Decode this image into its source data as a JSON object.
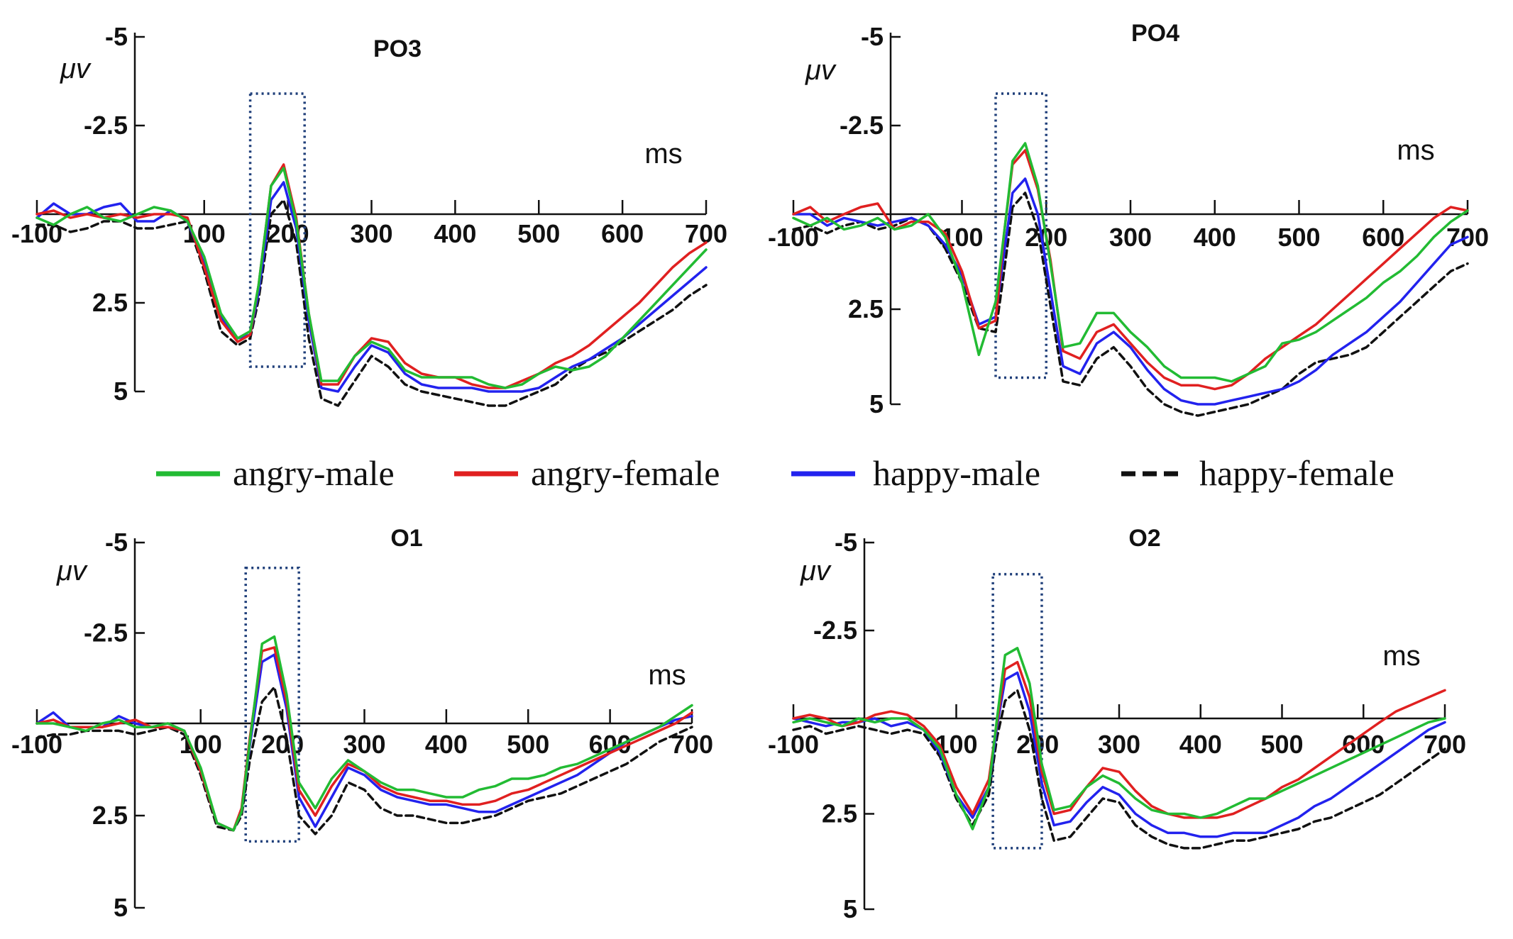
{
  "legend": [
    {
      "label": "angry-male",
      "color": "#22bb33",
      "dashed": false
    },
    {
      "label": "angry-female",
      "color": "#e02020",
      "dashed": false
    },
    {
      "label": "happy-male",
      "color": "#2222ee",
      "dashed": false
    },
    {
      "label": "happy-female",
      "color": "#111111",
      "dashed": true
    }
  ],
  "chart_data": [
    {
      "type": "line",
      "title": "PO3",
      "xlabel": "ms",
      "ylabel": "μv",
      "xlim": [
        -100,
        700
      ],
      "ylim": [
        -5,
        5
      ],
      "y_inverted": true,
      "x_ticks": [
        -100,
        100,
        200,
        300,
        400,
        500,
        600,
        700
      ],
      "y_ticks": [
        -5,
        -2.5,
        2.5,
        5
      ],
      "y_tick_labels": [
        "-5",
        "-2.5",
        "2.5",
        "5"
      ],
      "highlight_window": {
        "x": [
          155,
          220
        ],
        "y": [
          -3.4,
          4.3
        ]
      },
      "x": [
        -100,
        -80,
        -60,
        -40,
        -20,
        0,
        20,
        40,
        60,
        80,
        100,
        120,
        140,
        155,
        165,
        180,
        195,
        210,
        225,
        240,
        260,
        280,
        300,
        320,
        340,
        360,
        380,
        400,
        420,
        440,
        460,
        480,
        500,
        520,
        540,
        560,
        580,
        600,
        620,
        640,
        660,
        680,
        700
      ],
      "series": [
        {
          "name": "angry-male",
          "values": [
            0.1,
            0.3,
            0.0,
            -0.2,
            0.1,
            0.2,
            0.0,
            -0.2,
            -0.1,
            0.2,
            1.2,
            2.8,
            3.5,
            3.3,
            2.0,
            -0.8,
            -1.3,
            0.2,
            2.8,
            4.7,
            4.7,
            4.0,
            3.6,
            3.8,
            4.4,
            4.6,
            4.6,
            4.6,
            4.6,
            4.8,
            4.9,
            4.8,
            4.5,
            4.3,
            4.4,
            4.3,
            4.0,
            3.5,
            3.0,
            2.5,
            2.0,
            1.5,
            1.0
          ]
        },
        {
          "name": "angry-female",
          "values": [
            0.0,
            -0.1,
            0.1,
            0.0,
            0.1,
            0.0,
            0.1,
            0.0,
            0.0,
            0.1,
            1.5,
            3.0,
            3.6,
            3.4,
            2.0,
            -0.8,
            -1.4,
            0.1,
            2.8,
            4.8,
            4.8,
            4.0,
            3.5,
            3.6,
            4.2,
            4.5,
            4.6,
            4.6,
            4.8,
            4.9,
            4.9,
            4.7,
            4.5,
            4.2,
            4.0,
            3.7,
            3.3,
            2.9,
            2.5,
            2.0,
            1.5,
            1.1,
            0.8
          ]
        },
        {
          "name": "happy-male",
          "values": [
            0.1,
            -0.3,
            0.0,
            0.0,
            -0.2,
            -0.3,
            0.2,
            0.2,
            -0.1,
            0.2,
            1.4,
            2.9,
            3.5,
            3.4,
            2.2,
            -0.4,
            -0.9,
            0.4,
            3.0,
            4.9,
            5.0,
            4.3,
            3.7,
            3.9,
            4.5,
            4.8,
            4.9,
            4.9,
            4.9,
            5.0,
            5.0,
            5.0,
            4.9,
            4.6,
            4.3,
            4.1,
            3.8,
            3.5,
            3.1,
            2.7,
            2.3,
            1.9,
            1.5
          ]
        },
        {
          "name": "happy-female",
          "values": [
            0.3,
            0.3,
            0.5,
            0.4,
            0.2,
            0.2,
            0.4,
            0.4,
            0.3,
            0.2,
            1.6,
            3.3,
            3.7,
            3.5,
            2.4,
            0.0,
            -0.4,
            0.8,
            3.5,
            5.2,
            5.4,
            4.7,
            4.0,
            4.3,
            4.8,
            5.0,
            5.1,
            5.2,
            5.3,
            5.4,
            5.4,
            5.2,
            5.0,
            4.8,
            4.4,
            4.1,
            3.9,
            3.6,
            3.3,
            3.0,
            2.7,
            2.3,
            2.0
          ]
        }
      ]
    },
    {
      "type": "line",
      "title": "PO4",
      "xlabel": "ms",
      "ylabel": "μv",
      "xlim": [
        -100,
        700
      ],
      "ylim": [
        -5,
        5
      ],
      "y_inverted": true,
      "x_ticks": [
        -100,
        100,
        200,
        300,
        400,
        500,
        600,
        700
      ],
      "y_ticks": [
        -5,
        -2.5,
        2.5,
        5
      ],
      "y_tick_labels": [
        "-5",
        "-2.5",
        "2.5",
        "5"
      ],
      "highlight_window": {
        "x": [
          140,
          200
        ],
        "y": [
          -3.4,
          4.3
        ]
      },
      "x": [
        -100,
        -80,
        -60,
        -40,
        -20,
        0,
        20,
        40,
        60,
        80,
        100,
        120,
        140,
        150,
        160,
        175,
        190,
        205,
        220,
        240,
        260,
        280,
        300,
        320,
        340,
        360,
        380,
        400,
        420,
        440,
        460,
        480,
        500,
        520,
        540,
        560,
        580,
        600,
        620,
        640,
        660,
        680,
        700
      ],
      "series": [
        {
          "name": "angry-male",
          "values": [
            0.1,
            0.3,
            0.1,
            0.4,
            0.3,
            0.1,
            0.4,
            0.3,
            0.0,
            0.6,
            1.8,
            3.7,
            2.3,
            0.5,
            -1.5,
            -2.0,
            -0.8,
            1.3,
            3.5,
            3.4,
            2.6,
            2.6,
            3.1,
            3.5,
            4.0,
            4.3,
            4.3,
            4.3,
            4.4,
            4.2,
            4.0,
            3.4,
            3.3,
            3.1,
            2.8,
            2.5,
            2.2,
            1.8,
            1.5,
            1.1,
            0.6,
            0.2,
            -0.1
          ]
        },
        {
          "name": "angry-female",
          "values": [
            0.0,
            -0.2,
            0.2,
            0.0,
            -0.2,
            -0.3,
            0.4,
            0.2,
            0.2,
            0.5,
            1.5,
            3.0,
            2.8,
            0.5,
            -1.4,
            -1.8,
            -0.7,
            1.2,
            3.6,
            3.8,
            3.1,
            2.9,
            3.4,
            3.9,
            4.3,
            4.5,
            4.5,
            4.6,
            4.5,
            4.2,
            3.8,
            3.5,
            3.2,
            2.9,
            2.5,
            2.1,
            1.7,
            1.3,
            0.9,
            0.5,
            0.1,
            -0.2,
            -0.1
          ]
        },
        {
          "name": "happy-male",
          "values": [
            0.0,
            0.0,
            0.3,
            0.1,
            0.2,
            0.3,
            0.2,
            0.1,
            0.3,
            0.8,
            1.6,
            2.9,
            2.7,
            1.0,
            -0.6,
            -1.0,
            0.0,
            2.0,
            4.0,
            4.2,
            3.4,
            3.1,
            3.5,
            4.1,
            4.6,
            4.9,
            5.0,
            5.0,
            4.9,
            4.8,
            4.7,
            4.6,
            4.4,
            4.1,
            3.7,
            3.4,
            3.1,
            2.7,
            2.3,
            1.8,
            1.3,
            0.8,
            0.6
          ]
        },
        {
          "name": "happy-female",
          "values": [
            0.4,
            0.3,
            0.5,
            0.3,
            0.2,
            0.4,
            0.3,
            0.1,
            0.3,
            0.9,
            1.8,
            3.0,
            3.1,
            1.5,
            -0.2,
            -0.6,
            0.4,
            2.4,
            4.4,
            4.5,
            3.8,
            3.5,
            4.0,
            4.6,
            5.0,
            5.2,
            5.3,
            5.2,
            5.1,
            5.0,
            4.8,
            4.6,
            4.2,
            3.9,
            3.8,
            3.7,
            3.5,
            3.1,
            2.7,
            2.3,
            1.9,
            1.5,
            1.3
          ]
        }
      ]
    },
    {
      "type": "line",
      "title": "O1",
      "xlabel": "ms",
      "ylabel": "μv",
      "xlim": [
        -100,
        700
      ],
      "ylim": [
        -5,
        5
      ],
      "y_inverted": true,
      "x_ticks": [
        -100,
        100,
        200,
        300,
        400,
        500,
        600,
        700
      ],
      "y_ticks": [
        -5,
        -2.5,
        2.5,
        5
      ],
      "y_tick_labels": [
        "-5",
        "-2.5",
        "2.5",
        "5"
      ],
      "highlight_window": {
        "x": [
          155,
          220
        ],
        "y": [
          -4.3,
          3.2
        ]
      },
      "x": [
        -100,
        -80,
        -60,
        -40,
        -20,
        0,
        20,
        40,
        60,
        80,
        100,
        120,
        140,
        150,
        160,
        175,
        190,
        205,
        220,
        240,
        260,
        280,
        300,
        320,
        340,
        360,
        380,
        400,
        420,
        440,
        460,
        480,
        500,
        520,
        540,
        560,
        580,
        600,
        620,
        640,
        660,
        680,
        700
      ],
      "series": [
        {
          "name": "angry-male",
          "values": [
            0.0,
            0.0,
            0.1,
            0.2,
            0.0,
            -0.1,
            0.1,
            0.1,
            0.0,
            0.2,
            1.2,
            2.7,
            2.9,
            2.4,
            0.5,
            -2.2,
            -2.4,
            -0.8,
            1.6,
            2.3,
            1.5,
            1.0,
            1.3,
            1.6,
            1.8,
            1.8,
            1.9,
            2.0,
            2.0,
            1.8,
            1.7,
            1.5,
            1.5,
            1.4,
            1.2,
            1.1,
            0.9,
            0.7,
            0.5,
            0.3,
            0.1,
            -0.2,
            -0.5
          ]
        },
        {
          "name": "angry-female",
          "values": [
            0.0,
            -0.1,
            0.1,
            0.1,
            0.1,
            0.0,
            -0.1,
            0.1,
            0.1,
            0.2,
            1.3,
            2.7,
            2.9,
            2.3,
            0.4,
            -2.0,
            -2.1,
            -0.6,
            1.8,
            2.5,
            1.7,
            1.1,
            1.3,
            1.7,
            1.9,
            2.0,
            2.1,
            2.1,
            2.2,
            2.2,
            2.1,
            1.9,
            1.8,
            1.6,
            1.4,
            1.2,
            1.0,
            0.8,
            0.6,
            0.4,
            0.2,
            0.0,
            -0.3
          ]
        },
        {
          "name": "happy-male",
          "values": [
            0.0,
            -0.3,
            0.1,
            0.1,
            0.1,
            -0.2,
            0.0,
            0.1,
            0.1,
            0.2,
            1.3,
            2.7,
            2.9,
            2.4,
            0.6,
            -1.7,
            -1.9,
            -0.4,
            2.0,
            2.8,
            2.0,
            1.2,
            1.4,
            1.8,
            2.0,
            2.1,
            2.2,
            2.2,
            2.3,
            2.4,
            2.4,
            2.2,
            2.0,
            1.8,
            1.6,
            1.4,
            1.1,
            0.8,
            0.5,
            0.3,
            0.1,
            -0.1,
            -0.2
          ]
        },
        {
          "name": "happy-female",
          "values": [
            0.4,
            0.3,
            0.3,
            0.2,
            0.2,
            0.2,
            0.3,
            0.2,
            0.1,
            0.3,
            1.4,
            2.8,
            2.9,
            2.5,
            1.0,
            -0.6,
            -1.0,
            0.4,
            2.5,
            3.0,
            2.5,
            1.6,
            1.8,
            2.3,
            2.5,
            2.5,
            2.6,
            2.7,
            2.7,
            2.6,
            2.5,
            2.3,
            2.1,
            2.0,
            1.9,
            1.7,
            1.5,
            1.3,
            1.1,
            0.8,
            0.5,
            0.3,
            0.1
          ]
        }
      ]
    },
    {
      "type": "line",
      "title": "O2",
      "xlabel": "ms",
      "ylabel": "μv",
      "xlim": [
        -100,
        700
      ],
      "ylim": [
        -5,
        5
      ],
      "y_inverted": true,
      "x_ticks": [
        -100,
        100,
        200,
        300,
        400,
        500,
        600,
        700
      ],
      "y_ticks": [
        -5,
        -2.5,
        2.5,
        5
      ],
      "y_tick_labels": [
        "-5",
        "-2.5",
        "2.5",
        "5"
      ],
      "highlight_window": {
        "x": [
          145,
          205
        ],
        "y": [
          -4.1,
          3.4
        ]
      },
      "x": [
        -100,
        -80,
        -60,
        -40,
        -20,
        0,
        20,
        40,
        60,
        80,
        100,
        120,
        140,
        150,
        160,
        175,
        190,
        205,
        220,
        240,
        260,
        280,
        300,
        320,
        340,
        360,
        380,
        400,
        420,
        440,
        460,
        480,
        500,
        520,
        540,
        560,
        580,
        600,
        620,
        640,
        660,
        680,
        700
      ],
      "series": [
        {
          "name": "angry-male",
          "values": [
            0.1,
            0.0,
            0.1,
            0.2,
            0.0,
            0.1,
            0.0,
            0.0,
            0.3,
            0.8,
            2.0,
            2.9,
            1.8,
            0.0,
            -1.8,
            -2.0,
            -1.0,
            1.2,
            2.4,
            2.3,
            1.8,
            1.5,
            1.7,
            2.1,
            2.4,
            2.5,
            2.5,
            2.6,
            2.5,
            2.3,
            2.1,
            2.1,
            1.9,
            1.7,
            1.5,
            1.3,
            1.1,
            0.9,
            0.7,
            0.5,
            0.3,
            0.1,
            0.0
          ]
        },
        {
          "name": "angry-female",
          "values": [
            0.0,
            -0.1,
            0.0,
            0.2,
            0.1,
            -0.1,
            -0.2,
            -0.1,
            0.2,
            0.7,
            1.8,
            2.5,
            1.6,
            0.1,
            -1.4,
            -1.6,
            -0.6,
            1.4,
            2.5,
            2.4,
            1.8,
            1.3,
            1.4,
            1.9,
            2.3,
            2.5,
            2.6,
            2.6,
            2.6,
            2.5,
            2.3,
            2.1,
            1.8,
            1.6,
            1.3,
            1.0,
            0.7,
            0.4,
            0.1,
            -0.2,
            -0.4,
            -0.6,
            -0.8
          ]
        },
        {
          "name": "happy-male",
          "values": [
            0.0,
            0.1,
            0.2,
            0.1,
            0.1,
            0.0,
            0.2,
            0.1,
            0.3,
            0.9,
            2.0,
            2.6,
            1.8,
            0.2,
            -1.1,
            -1.3,
            -0.2,
            1.7,
            2.8,
            2.7,
            2.2,
            1.8,
            2.0,
            2.5,
            2.8,
            3.0,
            3.0,
            3.1,
            3.1,
            3.0,
            3.0,
            3.0,
            2.8,
            2.6,
            2.3,
            2.1,
            1.8,
            1.5,
            1.2,
            0.9,
            0.6,
            0.3,
            0.1
          ]
        },
        {
          "name": "happy-female",
          "values": [
            0.3,
            0.2,
            0.4,
            0.3,
            0.2,
            0.3,
            0.4,
            0.3,
            0.4,
            1.0,
            2.1,
            2.8,
            2.0,
            0.5,
            -0.5,
            -0.8,
            0.3,
            2.1,
            3.2,
            3.1,
            2.6,
            2.1,
            2.2,
            2.8,
            3.1,
            3.3,
            3.4,
            3.4,
            3.3,
            3.2,
            3.2,
            3.1,
            3.0,
            2.9,
            2.7,
            2.6,
            2.4,
            2.2,
            2.0,
            1.7,
            1.4,
            1.1,
            0.8
          ]
        }
      ]
    }
  ]
}
